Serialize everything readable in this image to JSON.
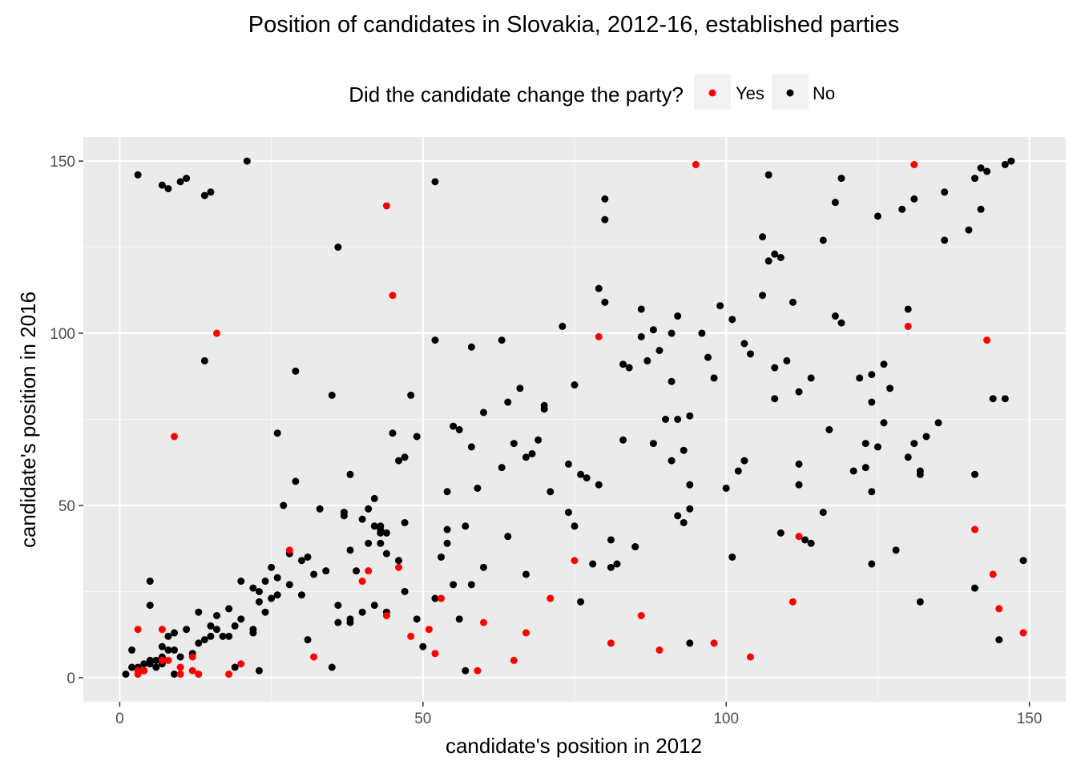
{
  "chart_data": {
    "type": "scatter",
    "title": "Position of candidates in Slovakia, 2012-16, established parties",
    "xlabel": "candidate's position in 2012",
    "ylabel": "candidate's position in 2016",
    "xlim": [
      -6,
      156
    ],
    "ylim": [
      -7,
      157
    ],
    "xticks": [
      0,
      50,
      100,
      150
    ],
    "yticks": [
      0,
      50,
      100,
      150
    ],
    "grid": true,
    "legend": {
      "title": "Did the candidate change the party?",
      "position": "top",
      "entries": [
        {
          "label": "Yes",
          "color": "#ff0000"
        },
        {
          "label": "No",
          "color": "#000000"
        }
      ]
    },
    "series": [
      {
        "name": "Yes",
        "color": "#ff0000",
        "points": [
          [
            3,
            14
          ],
          [
            3,
            2
          ],
          [
            3,
            1
          ],
          [
            4,
            2
          ],
          [
            7,
            14
          ],
          [
            7,
            5
          ],
          [
            8,
            5
          ],
          [
            9,
            70
          ],
          [
            10,
            3
          ],
          [
            10,
            1
          ],
          [
            12,
            2
          ],
          [
            12,
            6
          ],
          [
            13,
            1
          ],
          [
            16,
            100
          ],
          [
            18,
            1
          ],
          [
            20,
            4
          ],
          [
            28,
            37
          ],
          [
            32,
            6
          ],
          [
            40,
            28
          ],
          [
            41,
            31
          ],
          [
            44,
            137
          ],
          [
            44,
            18
          ],
          [
            45,
            111
          ],
          [
            46,
            32
          ],
          [
            48,
            12
          ],
          [
            51,
            14
          ],
          [
            52,
            7
          ],
          [
            53,
            23
          ],
          [
            59,
            2
          ],
          [
            60,
            16
          ],
          [
            65,
            5
          ],
          [
            67,
            13
          ],
          [
            71,
            23
          ],
          [
            75,
            34
          ],
          [
            79,
            99
          ],
          [
            81,
            10
          ],
          [
            86,
            18
          ],
          [
            89,
            8
          ],
          [
            95,
            149
          ],
          [
            98,
            10
          ],
          [
            104,
            6
          ],
          [
            111,
            22
          ],
          [
            112,
            41
          ],
          [
            130,
            102
          ],
          [
            131,
            149
          ],
          [
            141,
            43
          ],
          [
            143,
            98
          ],
          [
            144,
            30
          ],
          [
            145,
            20
          ],
          [
            149,
            13
          ]
        ]
      },
      {
        "name": "No",
        "color": "#000000",
        "points": [
          [
            1,
            1
          ],
          [
            2,
            3
          ],
          [
            2,
            8
          ],
          [
            3,
            146
          ],
          [
            3,
            3
          ],
          [
            4,
            4
          ],
          [
            4,
            2
          ],
          [
            5,
            5
          ],
          [
            5,
            4
          ],
          [
            5,
            21
          ],
          [
            5,
            28
          ],
          [
            6,
            5
          ],
          [
            6,
            3
          ],
          [
            7,
            143
          ],
          [
            7,
            9
          ],
          [
            7,
            6
          ],
          [
            7,
            4
          ],
          [
            8,
            142
          ],
          [
            8,
            8
          ],
          [
            8,
            12
          ],
          [
            9,
            13
          ],
          [
            9,
            1
          ],
          [
            9,
            8
          ],
          [
            10,
            144
          ],
          [
            10,
            6
          ],
          [
            11,
            145
          ],
          [
            11,
            14
          ],
          [
            12,
            7
          ],
          [
            13,
            19
          ],
          [
            13,
            10
          ],
          [
            14,
            140
          ],
          [
            14,
            92
          ],
          [
            14,
            11
          ],
          [
            15,
            141
          ],
          [
            15,
            15
          ],
          [
            15,
            12
          ],
          [
            16,
            18
          ],
          [
            16,
            14
          ],
          [
            17,
            12
          ],
          [
            18,
            20
          ],
          [
            18,
            12
          ],
          [
            19,
            3
          ],
          [
            19,
            15
          ],
          [
            20,
            28
          ],
          [
            20,
            17
          ],
          [
            21,
            150
          ],
          [
            22,
            26
          ],
          [
            22,
            13
          ],
          [
            22,
            14
          ],
          [
            23,
            2
          ],
          [
            23,
            25
          ],
          [
            23,
            22
          ],
          [
            24,
            28
          ],
          [
            24,
            19
          ],
          [
            25,
            32
          ],
          [
            25,
            23
          ],
          [
            26,
            71
          ],
          [
            26,
            29
          ],
          [
            26,
            24
          ],
          [
            27,
            50
          ],
          [
            28,
            36
          ],
          [
            28,
            27
          ],
          [
            29,
            89
          ],
          [
            29,
            57
          ],
          [
            30,
            34
          ],
          [
            30,
            24
          ],
          [
            31,
            35
          ],
          [
            31,
            11
          ],
          [
            32,
            30
          ],
          [
            33,
            49
          ],
          [
            34,
            31
          ],
          [
            35,
            82
          ],
          [
            35,
            3
          ],
          [
            36,
            125
          ],
          [
            36,
            21
          ],
          [
            36,
            16
          ],
          [
            37,
            48
          ],
          [
            37,
            47
          ],
          [
            38,
            59
          ],
          [
            38,
            37
          ],
          [
            38,
            16
          ],
          [
            38,
            17
          ],
          [
            39,
            31
          ],
          [
            40,
            46
          ],
          [
            40,
            19
          ],
          [
            41,
            49
          ],
          [
            41,
            39
          ],
          [
            42,
            52
          ],
          [
            42,
            44
          ],
          [
            42,
            21
          ],
          [
            43,
            43
          ],
          [
            43,
            42
          ],
          [
            43,
            39
          ],
          [
            43,
            44
          ],
          [
            44,
            42
          ],
          [
            44,
            36
          ],
          [
            44,
            19
          ],
          [
            45,
            71
          ],
          [
            46,
            63
          ],
          [
            46,
            34
          ],
          [
            47,
            64
          ],
          [
            47,
            45
          ],
          [
            47,
            25
          ],
          [
            48,
            82
          ],
          [
            49,
            70
          ],
          [
            49,
            17
          ],
          [
            50,
            9
          ],
          [
            52,
            144
          ],
          [
            52,
            98
          ],
          [
            52,
            23
          ],
          [
            53,
            35
          ],
          [
            54,
            54
          ],
          [
            54,
            43
          ],
          [
            54,
            39
          ],
          [
            55,
            73
          ],
          [
            55,
            27
          ],
          [
            56,
            72
          ],
          [
            56,
            17
          ],
          [
            57,
            44
          ],
          [
            57,
            2
          ],
          [
            58,
            96
          ],
          [
            58,
            67
          ],
          [
            58,
            27
          ],
          [
            59,
            55
          ],
          [
            60,
            77
          ],
          [
            60,
            32
          ],
          [
            63,
            98
          ],
          [
            63,
            61
          ],
          [
            64,
            80
          ],
          [
            64,
            41
          ],
          [
            65,
            68
          ],
          [
            66,
            84
          ],
          [
            67,
            64
          ],
          [
            67,
            30
          ],
          [
            68,
            65
          ],
          [
            69,
            69
          ],
          [
            70,
            79
          ],
          [
            70,
            78
          ],
          [
            71,
            54
          ],
          [
            73,
            102
          ],
          [
            74,
            62
          ],
          [
            74,
            48
          ],
          [
            75,
            85
          ],
          [
            75,
            44
          ],
          [
            76,
            59
          ],
          [
            76,
            22
          ],
          [
            77,
            58
          ],
          [
            78,
            33
          ],
          [
            79,
            113
          ],
          [
            79,
            56
          ],
          [
            80,
            139
          ],
          [
            80,
            133
          ],
          [
            80,
            109
          ],
          [
            81,
            40
          ],
          [
            81,
            32
          ],
          [
            82,
            33
          ],
          [
            83,
            91
          ],
          [
            83,
            69
          ],
          [
            84,
            90
          ],
          [
            85,
            38
          ],
          [
            86,
            107
          ],
          [
            86,
            99
          ],
          [
            87,
            92
          ],
          [
            88,
            101
          ],
          [
            88,
            68
          ],
          [
            89,
            95
          ],
          [
            90,
            75
          ],
          [
            91,
            100
          ],
          [
            91,
            86
          ],
          [
            91,
            63
          ],
          [
            92,
            105
          ],
          [
            92,
            75
          ],
          [
            92,
            47
          ],
          [
            93,
            66
          ],
          [
            93,
            45
          ],
          [
            94,
            76
          ],
          [
            94,
            56
          ],
          [
            94,
            49
          ],
          [
            94,
            10
          ],
          [
            96,
            100
          ],
          [
            97,
            93
          ],
          [
            98,
            87
          ],
          [
            99,
            108
          ],
          [
            100,
            55
          ],
          [
            101,
            104
          ],
          [
            101,
            35
          ],
          [
            102,
            60
          ],
          [
            103,
            63
          ],
          [
            103,
            97
          ],
          [
            104,
            94
          ],
          [
            106,
            128
          ],
          [
            106,
            111
          ],
          [
            107,
            146
          ],
          [
            107,
            121
          ],
          [
            108,
            123
          ],
          [
            108,
            90
          ],
          [
            108,
            81
          ],
          [
            109,
            122
          ],
          [
            109,
            42
          ],
          [
            110,
            92
          ],
          [
            111,
            109
          ],
          [
            112,
            83
          ],
          [
            112,
            62
          ],
          [
            112,
            56
          ],
          [
            113,
            40
          ],
          [
            114,
            87
          ],
          [
            114,
            39
          ],
          [
            116,
            127
          ],
          [
            116,
            48
          ],
          [
            117,
            72
          ],
          [
            118,
            138
          ],
          [
            118,
            105
          ],
          [
            119,
            145
          ],
          [
            119,
            103
          ],
          [
            121,
            60
          ],
          [
            122,
            87
          ],
          [
            123,
            68
          ],
          [
            123,
            61
          ],
          [
            124,
            88
          ],
          [
            124,
            80
          ],
          [
            124,
            54
          ],
          [
            124,
            33
          ],
          [
            125,
            134
          ],
          [
            125,
            67
          ],
          [
            126,
            91
          ],
          [
            126,
            74
          ],
          [
            127,
            84
          ],
          [
            128,
            37
          ],
          [
            129,
            136
          ],
          [
            130,
            107
          ],
          [
            130,
            64
          ],
          [
            131,
            139
          ],
          [
            131,
            68
          ],
          [
            132,
            60
          ],
          [
            132,
            59
          ],
          [
            132,
            22
          ],
          [
            133,
            70
          ],
          [
            135,
            74
          ],
          [
            136,
            141
          ],
          [
            136,
            127
          ],
          [
            140,
            130
          ],
          [
            141,
            145
          ],
          [
            141,
            59
          ],
          [
            141,
            26
          ],
          [
            142,
            148
          ],
          [
            142,
            136
          ],
          [
            143,
            147
          ],
          [
            144,
            81
          ],
          [
            145,
            11
          ],
          [
            146,
            149
          ],
          [
            146,
            81
          ],
          [
            147,
            150
          ],
          [
            149,
            34
          ]
        ]
      }
    ]
  }
}
